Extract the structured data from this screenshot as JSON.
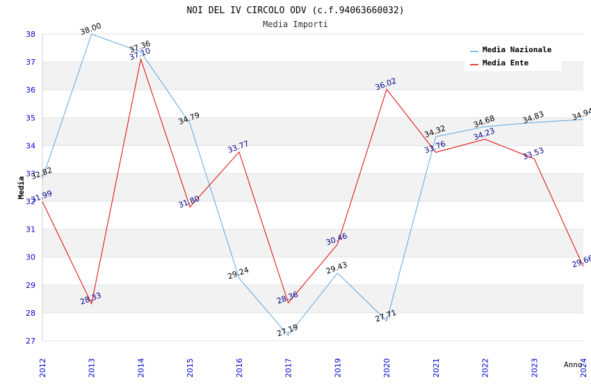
{
  "chart_data": {
    "type": "line",
    "title": "NOI DEL IV CIRCOLO ODV (c.f.94063660032)",
    "subtitle": "Media Importi",
    "xlabel": "Anno",
    "ylabel": "Media",
    "categories": [
      "2012",
      "2013",
      "2014",
      "2015",
      "2016",
      "2017",
      "2019",
      "2020",
      "2021",
      "2022",
      "2023",
      "2024"
    ],
    "ylim": [
      27,
      38
    ],
    "yticks": [
      "27",
      "28",
      "29",
      "30",
      "31",
      "32",
      "33",
      "34",
      "35",
      "36",
      "37",
      "38"
    ],
    "grid": true,
    "legend_position": "top-right",
    "series": [
      {
        "name": "Media Nazionale",
        "color": "#5da5e0",
        "label_color": "#000000",
        "values": [
          32.82,
          38.0,
          37.36,
          34.79,
          29.24,
          27.19,
          29.43,
          27.71,
          34.32,
          34.68,
          34.83,
          34.94
        ],
        "labels": [
          "32.82",
          "38.00",
          "37.36",
          "34.79",
          "29.24",
          "27.19",
          "29.43",
          "27.71",
          "34.32",
          "34.68",
          "34.83",
          "34.94"
        ]
      },
      {
        "name": "Media Ente",
        "color": "#e00000",
        "label_color": "#00008b",
        "values": [
          31.99,
          28.33,
          37.1,
          31.8,
          33.77,
          28.36,
          30.46,
          36.02,
          33.76,
          34.23,
          33.53,
          29.66
        ],
        "labels": [
          "31.99",
          "28.33",
          "37.10",
          "31.80",
          "33.77",
          "28.36",
          "30.46",
          "36.02",
          "33.76",
          "34.23",
          "33.53",
          "29.66"
        ]
      }
    ]
  }
}
